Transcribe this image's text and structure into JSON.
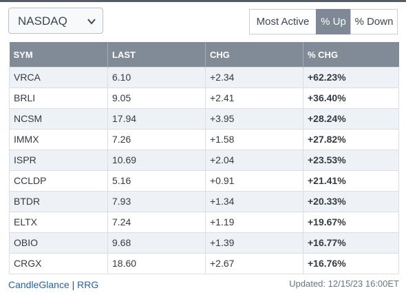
{
  "exchange_select": {
    "value": "NASDAQ"
  },
  "filters": {
    "most_active": "Most Active",
    "pct_up": "% Up",
    "pct_down": "% Down"
  },
  "table": {
    "headers": {
      "sym": "SYM",
      "last": "LAST",
      "chg": "CHG",
      "pct_chg": "% CHG"
    },
    "rows": [
      {
        "sym": "VRCA",
        "last": "6.10",
        "chg": "+2.34",
        "pct": "+62.23%"
      },
      {
        "sym": "BRLI",
        "last": "9.05",
        "chg": "+2.41",
        "pct": "+36.40%"
      },
      {
        "sym": "NCSM",
        "last": "17.94",
        "chg": "+3.95",
        "pct": "+28.24%"
      },
      {
        "sym": "IMMX",
        "last": "7.26",
        "chg": "+1.58",
        "pct": "+27.82%"
      },
      {
        "sym": "ISPR",
        "last": "10.69",
        "chg": "+2.04",
        "pct": "+23.53%"
      },
      {
        "sym": "CCLDP",
        "last": "5.16",
        "chg": "+0.91",
        "pct": "+21.41%"
      },
      {
        "sym": "BTDR",
        "last": "7.93",
        "chg": "+1.34",
        "pct": "+20.33%"
      },
      {
        "sym": "ELTX",
        "last": "7.24",
        "chg": "+1.19",
        "pct": "+19.67%"
      },
      {
        "sym": "OBIO",
        "last": "9.68",
        "chg": "+1.39",
        "pct": "+16.77%"
      },
      {
        "sym": "CRGX",
        "last": "18.60",
        "chg": "+2.67",
        "pct": "+16.76%"
      }
    ]
  },
  "footer": {
    "candleglance": "CandleGlance",
    "separator": "|",
    "rrg": "RRG",
    "updated": "Updated: 12/15/23 16:00ET"
  },
  "colors": {
    "header_bg": "#818b98",
    "symbol_link": "#2362a8",
    "positive": "#2e8b3a",
    "selected_filter": "#7e8896"
  },
  "icons": {
    "select_chevron": "chevron-down-icon"
  }
}
